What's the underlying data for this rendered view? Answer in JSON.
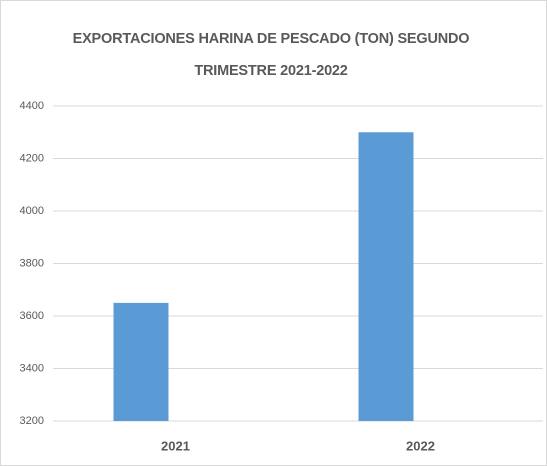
{
  "chart_data": {
    "type": "bar",
    "title": "EXPORTACIONES HARINA DE PESCADO (TON) SEGUNDO TRIMESTRE 2021-2022",
    "categories": [
      "2021",
      "2022"
    ],
    "values": [
      3650,
      4300
    ],
    "color": "#5b9bd5",
    "ylim": [
      3200,
      4400
    ],
    "yticks": [
      3200,
      3400,
      3600,
      3800,
      4000,
      4200,
      4400
    ],
    "grid": true
  }
}
